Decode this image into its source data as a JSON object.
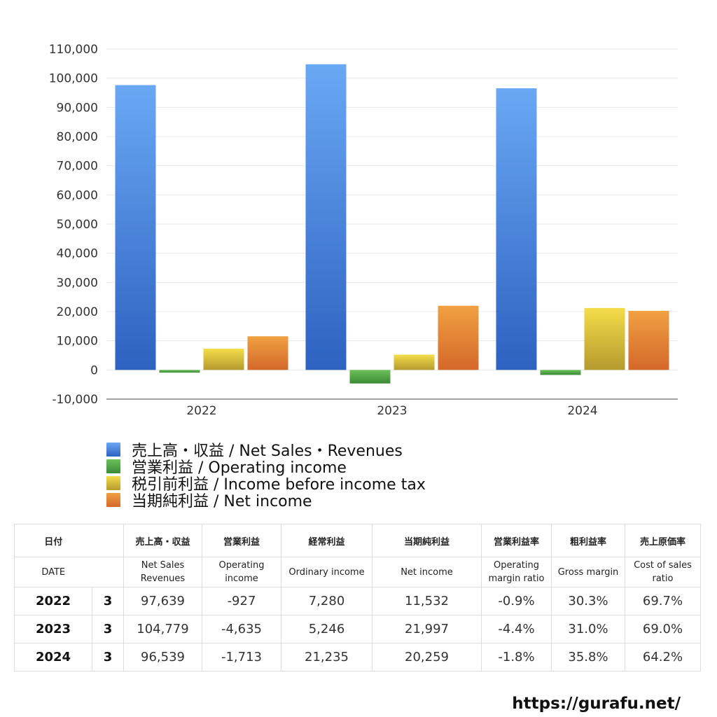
{
  "chart_data": {
    "type": "bar",
    "categories": [
      "2022",
      "2023",
      "2024"
    ],
    "series": [
      {
        "name": "売上高・収益 / Net Sales・Revenues",
        "values": [
          97639,
          104779,
          96539
        ]
      },
      {
        "name": "営業利益 / Operating income",
        "values": [
          -927,
          -4635,
          -1713
        ]
      },
      {
        "name": "税引前利益 / Income before income tax",
        "values": [
          7280,
          5246,
          21235
        ]
      },
      {
        "name": "当期純利益 / Net income",
        "values": [
          11532,
          21997,
          20259
        ]
      }
    ],
    "ylim": [
      -10000,
      110000
    ],
    "yticks": [
      "110,000",
      "100,000",
      "90,000",
      "80,000",
      "70,000",
      "60,000",
      "50,000",
      "40,000",
      "30,000",
      "20,000",
      "10,000",
      "0",
      "-10,000"
    ],
    "grid": true,
    "legend_position": "bottom-left",
    "colors": {
      "net_sales": [
        "#6aa8f4",
        "#2d62c0"
      ],
      "operating_income": [
        "#6cc05a",
        "#3a8a35"
      ],
      "income_before_tax": [
        "#f4dc4a",
        "#b59a2e"
      ],
      "net_income": [
        "#f0a042",
        "#d4682a"
      ]
    }
  },
  "legend": [
    {
      "label": "売上高・収益 / Net Sales・Revenues",
      "color": "#4a86de"
    },
    {
      "label": "営業利益 / Operating income",
      "color": "#4ea447"
    },
    {
      "label": "税引前利益 / Income before income tax",
      "color": "#e1c43a"
    },
    {
      "label": "当期純利益 / Net income",
      "color": "#e58434"
    }
  ],
  "table": {
    "headers_jp": [
      "日付",
      "売上高・収益",
      "営業利益",
      "経常利益",
      "当期純利益",
      "営業利益率",
      "粗利益率",
      "売上原価率"
    ],
    "headers_en": [
      "DATE",
      "Net Sales Revenues",
      "Operating income",
      "Ordinary income",
      "Net income",
      "Operating margin ratio",
      "Gross margin",
      "Cost of sales ratio"
    ],
    "rows": [
      {
        "year": "2022",
        "month": "3",
        "net_sales": "97,639",
        "operating_income": "-927",
        "ordinary_income": "7,280",
        "net_income": "11,532",
        "operating_margin": "-0.9%",
        "gross_margin": "30.3%",
        "cost_ratio": "69.7%"
      },
      {
        "year": "2023",
        "month": "3",
        "net_sales": "104,779",
        "operating_income": "-4,635",
        "ordinary_income": "5,246",
        "net_income": "21,997",
        "operating_margin": "-4.4%",
        "gross_margin": "31.0%",
        "cost_ratio": "69.0%"
      },
      {
        "year": "2024",
        "month": "3",
        "net_sales": "96,539",
        "operating_income": "-1,713",
        "ordinary_income": "21,235",
        "net_income": "20,259",
        "operating_margin": "-1.8%",
        "gross_margin": "35.8%",
        "cost_ratio": "64.2%"
      }
    ]
  },
  "footer": {
    "url": "https://gurafu.net/"
  }
}
